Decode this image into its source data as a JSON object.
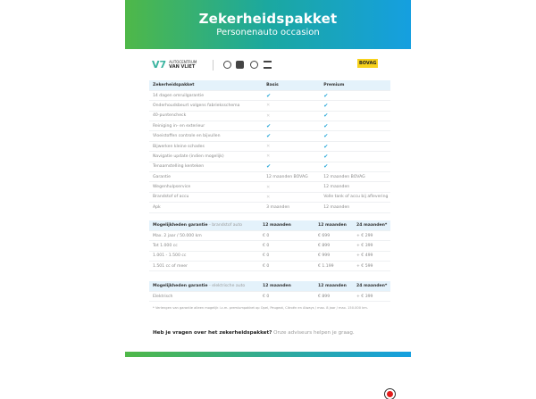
{
  "header": {
    "title": "Zekerheidspakket",
    "subtitle": "Personenauto occasion"
  },
  "logos": {
    "dealer_line1": "AUTOCENTRUM",
    "dealer_line2": "VAN VLIET",
    "brands": [
      "opel-icon",
      "peugeot-icon",
      "citroen-icon",
      "ds-icon"
    ],
    "bovag": "BOVAG"
  },
  "table1": {
    "headers": [
      "Zekerheidspakket",
      "Basis",
      "Premium"
    ],
    "rows": [
      {
        "label": "14 dagen omruilgarantie",
        "basis": "check",
        "premium": "check"
      },
      {
        "label": "Onderhoudsbeurt volgens fabrieksschema",
        "basis": "cross",
        "premium": "check"
      },
      {
        "label": "40-puntencheck",
        "basis": "cross",
        "premium": "check"
      },
      {
        "label": "Reiniging in- en exterieur",
        "basis": "check",
        "premium": "check"
      },
      {
        "label": "Vloeistoffen controle en bijvullen",
        "basis": "check",
        "premium": "check"
      },
      {
        "label": "Bijwerken kleine schades",
        "basis": "cross",
        "premium": "check"
      },
      {
        "label": "Navigatie update (indien mogelijk)",
        "basis": "cross",
        "premium": "check"
      },
      {
        "label": "Tenaamstelling kenteken",
        "basis": "check",
        "premium": "check"
      },
      {
        "label": "Garantie",
        "basis": "12 maanden BOVAG",
        "premium": "12 maanden BOVAG"
      },
      {
        "label": "Wegenhulpservice",
        "basis": "cross",
        "premium": "12 maanden"
      },
      {
        "label": "Brandstof of accu",
        "basis": "cross",
        "premium": "Volle tank of accu bij aflevering"
      },
      {
        "label": "Apk",
        "basis": "3 maanden",
        "premium": "12 maanden"
      }
    ]
  },
  "table2": {
    "title": "Mogelijkheden garantie",
    "subtitle": "- brandstof auto",
    "headers": [
      "12 maanden",
      "12 maanden",
      "24 maanden*"
    ],
    "rows": [
      [
        "Max. 2 jaar / 50.000 km",
        "€ 0",
        "€ 699",
        "+ € 299"
      ],
      [
        "Tot 1.000 cc",
        "€ 0",
        "€ 899",
        "+ € 399"
      ],
      [
        "1.001 - 1.500 cc",
        "€ 0",
        "€ 999",
        "+ € 499"
      ],
      [
        "1.501 cc of meer",
        "€ 0",
        "€ 1.199",
        "+ € 599"
      ]
    ]
  },
  "table3": {
    "title": "Mogelijkheden garantie",
    "subtitle": "- elektrische auto",
    "headers": [
      "12 maanden",
      "12 maanden",
      "24 maanden*"
    ],
    "rows": [
      [
        "Elektrisch",
        "€ 0",
        "€ 899",
        "+ € 399"
      ]
    ]
  },
  "footnote": "* Verlengen van garantie alleen mogelijk i.c.m. premiumpakket op Opel, Peugeot, Citroën en Always / max. 8 jaar / max. 150.000 km.",
  "question": {
    "bold": "Heb je vragen over het zekerheidspakket?",
    "text": "Onze adviseurs helpen je graag."
  },
  "colors": {
    "gradient_start": "#4fb848",
    "gradient_end": "#159fe0",
    "check": "#2aa8d8",
    "header_row": "#e4f2fb"
  }
}
